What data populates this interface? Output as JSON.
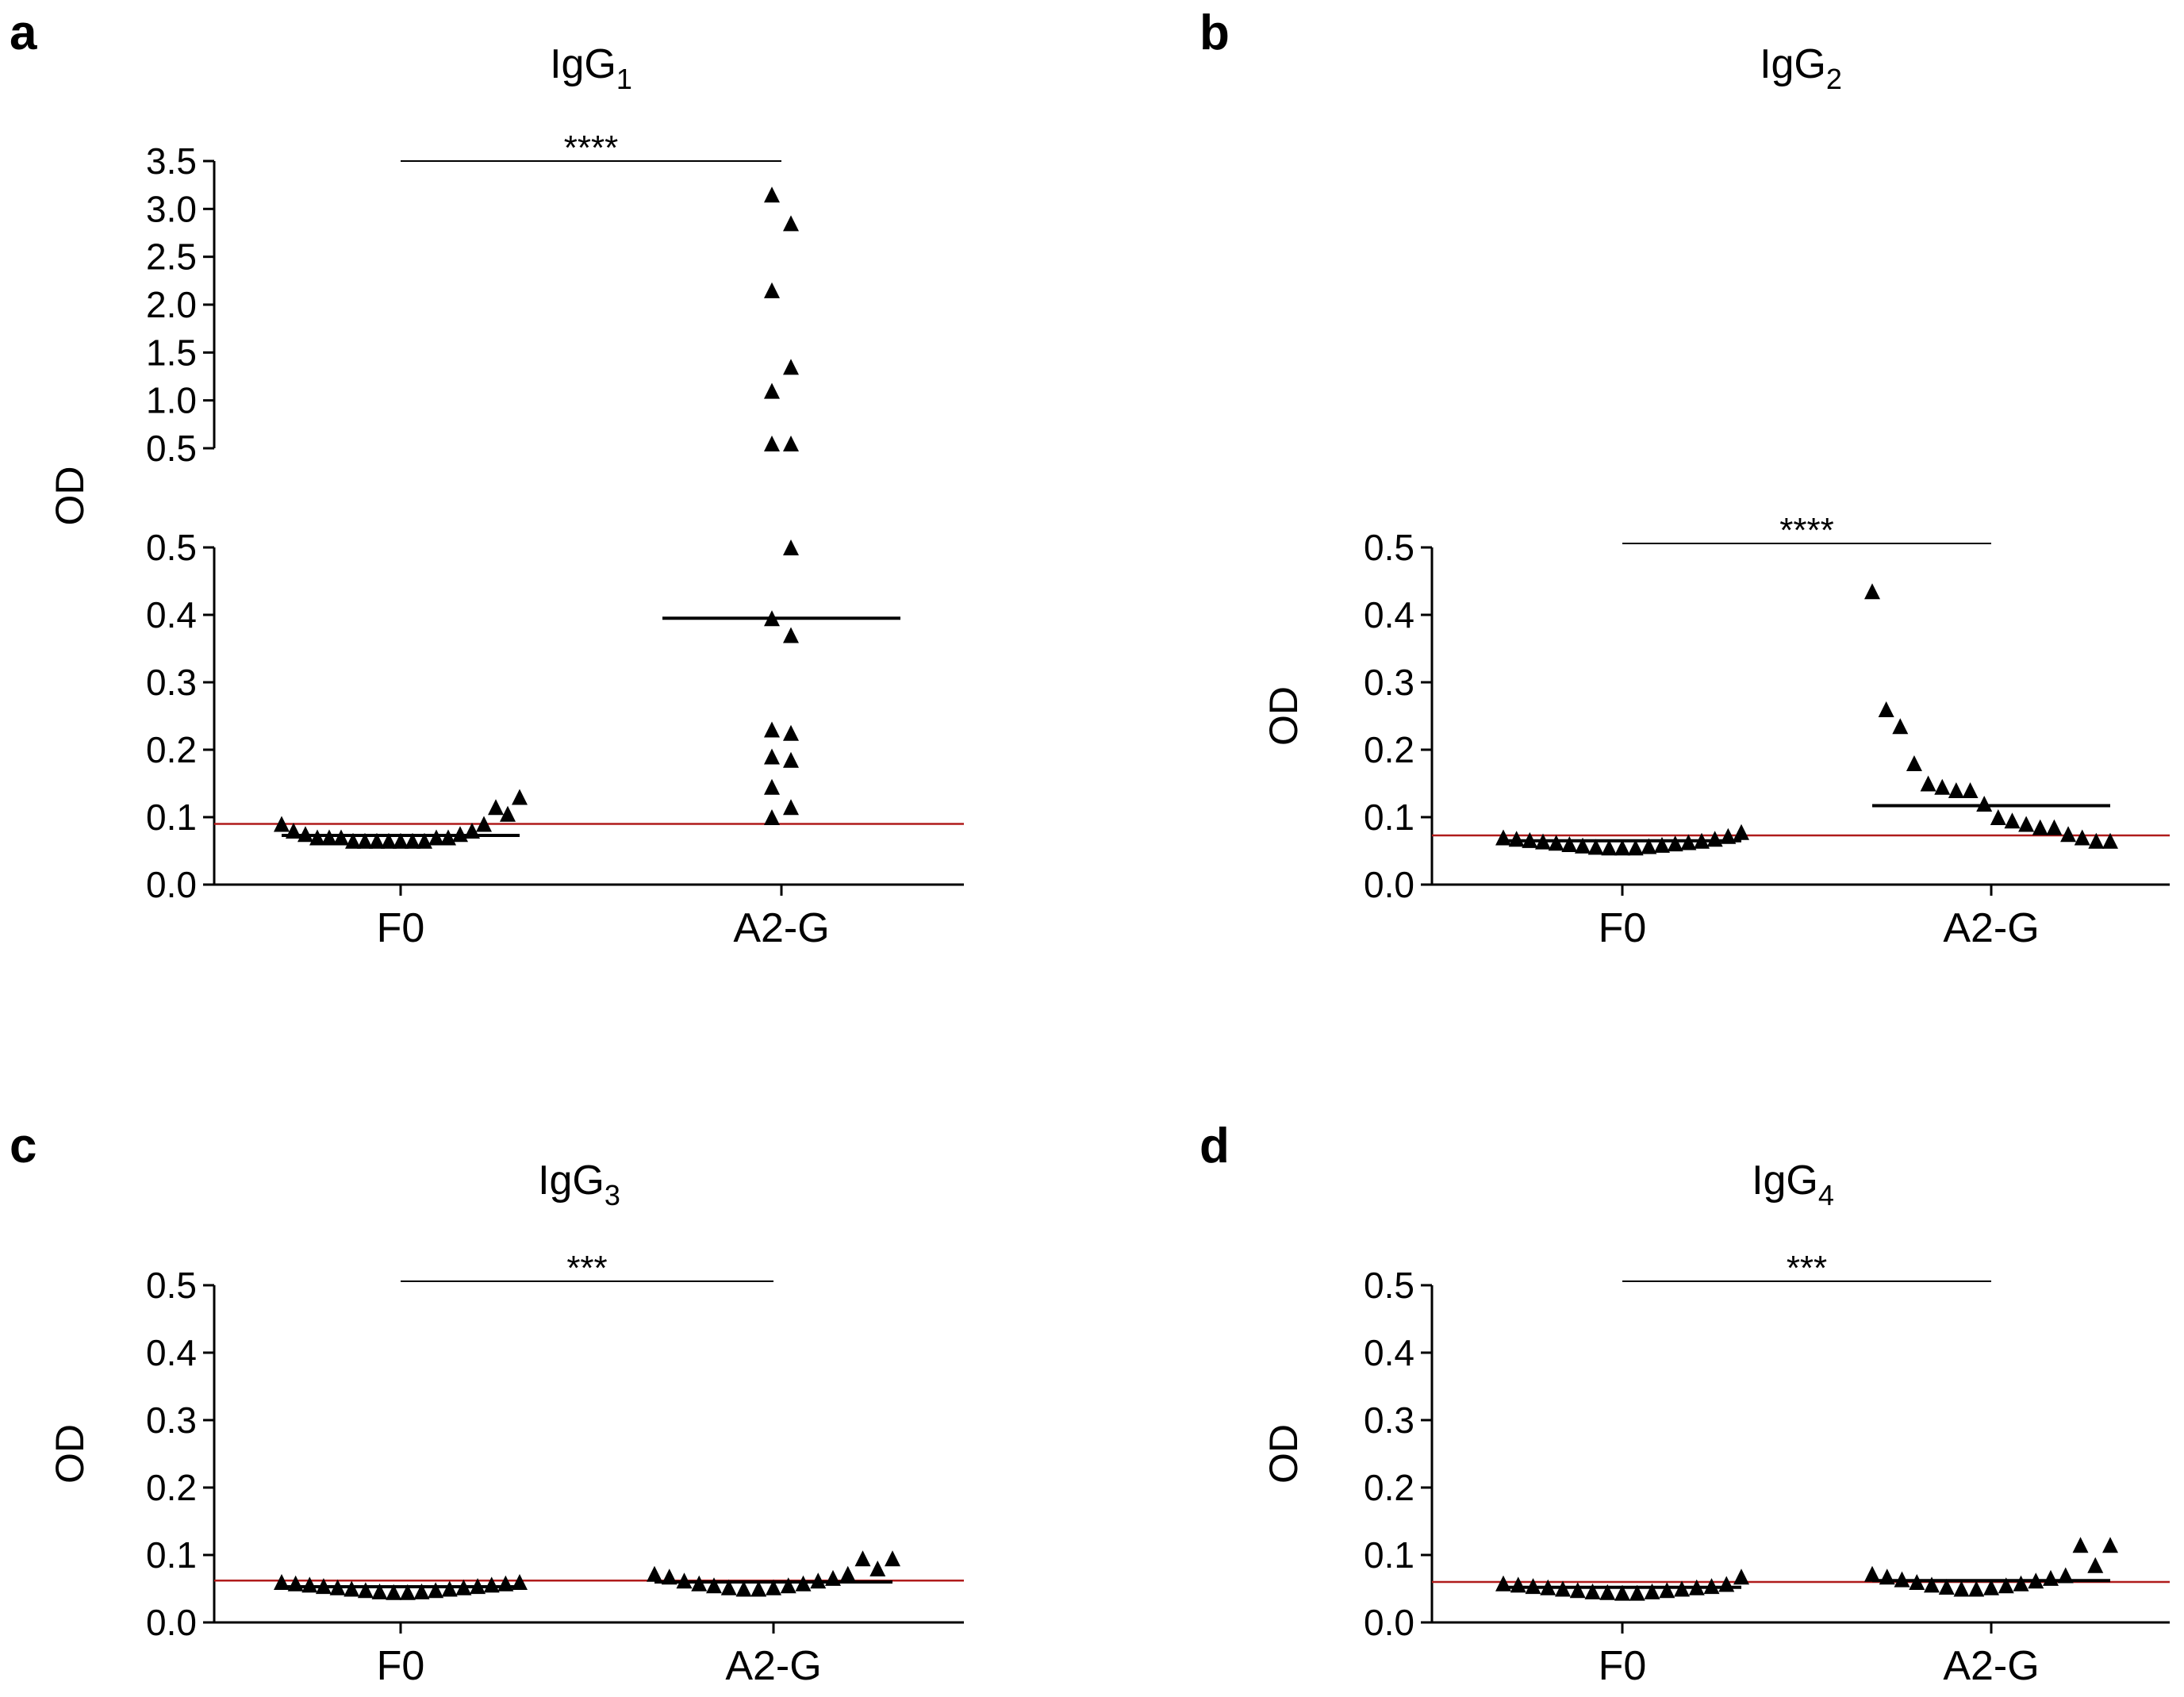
{
  "chart_data": [
    {
      "panel": "a",
      "type": "scatter",
      "title": "IgG",
      "title_sub": "1",
      "ylabel": "OD",
      "categories": [
        "F0",
        "A2-G"
      ],
      "axis_break": true,
      "lower_ylim": [
        0,
        0.5
      ],
      "lower_ticks": [
        "0.0",
        "0.1",
        "0.2",
        "0.3",
        "0.4",
        "0.5"
      ],
      "upper_ylim": [
        0.5,
        3.5
      ],
      "upper_ticks": [
        "0.5",
        "1.0",
        "1.5",
        "2.0",
        "2.5",
        "3.0",
        "3.5"
      ],
      "cutoff": 0.09,
      "significance": "****",
      "series": [
        {
          "name": "F0",
          "median": 0.073,
          "values": [
            0.09,
            0.08,
            0.075,
            0.07,
            0.07,
            0.07,
            0.065,
            0.065,
            0.065,
            0.065,
            0.065,
            0.065,
            0.065,
            0.07,
            0.07,
            0.075,
            0.08,
            0.09,
            0.115,
            0.105,
            0.13
          ]
        },
        {
          "name": "A2-G",
          "median": 0.395,
          "values": [
            3.15,
            2.85,
            2.15,
            1.35,
            1.1,
            0.55,
            0.55,
            0.5,
            0.395,
            0.37,
            0.23,
            0.225,
            0.19,
            0.185,
            0.145,
            0.115,
            0.1
          ]
        }
      ]
    },
    {
      "panel": "b",
      "type": "scatter",
      "title": "IgG",
      "title_sub": "2",
      "ylabel": "OD",
      "categories": [
        "F0",
        "A2-G"
      ],
      "ylim": [
        0,
        0.5
      ],
      "ticks": [
        "0.0",
        "0.1",
        "0.2",
        "0.3",
        "0.4",
        "0.5"
      ],
      "cutoff": 0.073,
      "significance": "****",
      "series": [
        {
          "name": "F0",
          "median": 0.065,
          "values": [
            0.07,
            0.068,
            0.066,
            0.064,
            0.062,
            0.06,
            0.058,
            0.056,
            0.055,
            0.055,
            0.055,
            0.057,
            0.059,
            0.061,
            0.063,
            0.065,
            0.068,
            0.072,
            0.078
          ]
        },
        {
          "name": "A2-G",
          "median": 0.117,
          "values": [
            0.435,
            0.26,
            0.235,
            0.18,
            0.15,
            0.145,
            0.14,
            0.14,
            0.12,
            0.1,
            0.095,
            0.09,
            0.085,
            0.085,
            0.075,
            0.07,
            0.065,
            0.065
          ]
        }
      ]
    },
    {
      "panel": "c",
      "type": "scatter",
      "title": "IgG",
      "title_sub": "3",
      "ylabel": "OD",
      "categories": [
        "F0",
        "A2-G"
      ],
      "ylim": [
        0,
        0.5
      ],
      "ticks": [
        "0.0",
        "0.1",
        "0.2",
        "0.3",
        "0.4",
        "0.5"
      ],
      "cutoff": 0.062,
      "significance": "***",
      "series": [
        {
          "name": "F0",
          "median": 0.053,
          "values": [
            0.06,
            0.058,
            0.056,
            0.054,
            0.052,
            0.05,
            0.048,
            0.046,
            0.045,
            0.045,
            0.046,
            0.048,
            0.05,
            0.052,
            0.054,
            0.056,
            0.058,
            0.06
          ]
        },
        {
          "name": "A2-G",
          "median": 0.06,
          "values": [
            0.072,
            0.068,
            0.062,
            0.058,
            0.055,
            0.052,
            0.05,
            0.05,
            0.052,
            0.055,
            0.058,
            0.062,
            0.066,
            0.072,
            0.095,
            0.08,
            0.095
          ]
        }
      ]
    },
    {
      "panel": "d",
      "type": "scatter",
      "title": "IgG",
      "title_sub": "4",
      "ylabel": "OD",
      "categories": [
        "F0",
        "A2-G"
      ],
      "ylim": [
        0,
        0.5
      ],
      "ticks": [
        "0.0",
        "0.1",
        "0.2",
        "0.3",
        "0.4",
        "0.5"
      ],
      "cutoff": 0.06,
      "significance": "***",
      "series": [
        {
          "name": "F0",
          "median": 0.052,
          "values": [
            0.058,
            0.056,
            0.054,
            0.052,
            0.05,
            0.048,
            0.046,
            0.045,
            0.044,
            0.044,
            0.046,
            0.048,
            0.05,
            0.052,
            0.054,
            0.057,
            0.068
          ]
        },
        {
          "name": "A2-G",
          "median": 0.062,
          "values": [
            0.072,
            0.068,
            0.064,
            0.06,
            0.056,
            0.053,
            0.05,
            0.05,
            0.052,
            0.055,
            0.058,
            0.062,
            0.066,
            0.07,
            0.115,
            0.085,
            0.115
          ]
        }
      ]
    }
  ]
}
